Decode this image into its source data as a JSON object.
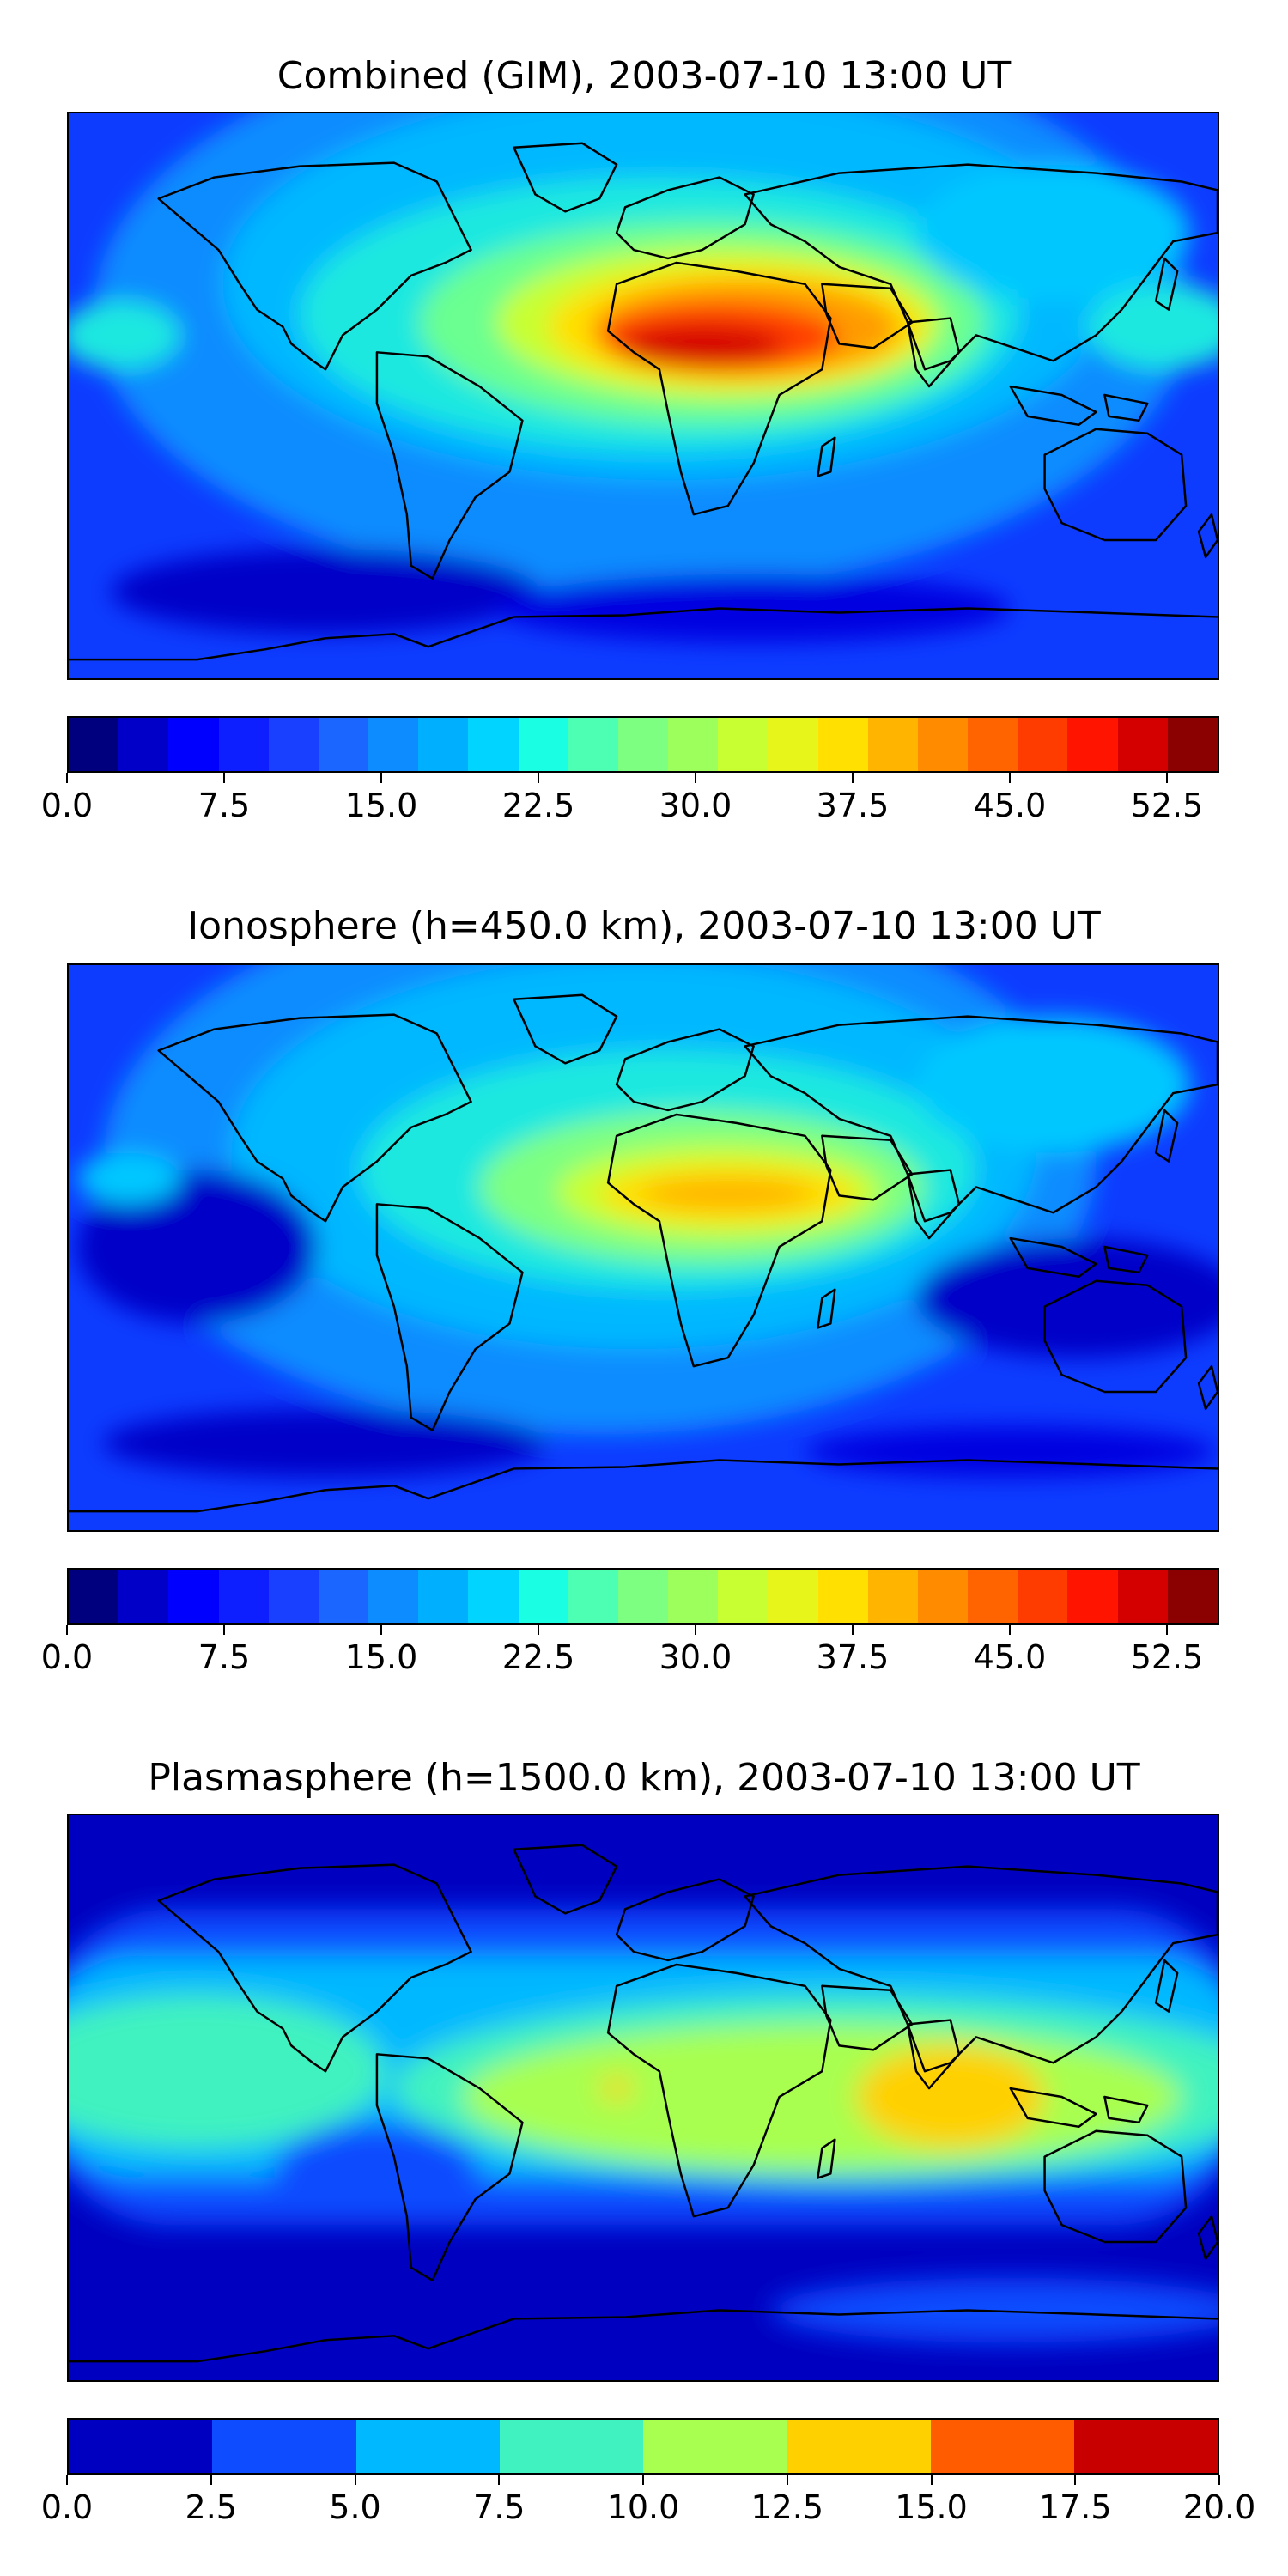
{
  "panels": [
    {
      "title": "Combined (GIM), 2003-07-10 13:00 UT",
      "colorbar": {
        "colors": [
          "#00007f",
          "#0000c8",
          "#0000ff",
          "#0d1fff",
          "#1a40ff",
          "#1a66ff",
          "#0d8cff",
          "#00b0ff",
          "#00d4ff",
          "#1affe4",
          "#4dffb2",
          "#7dff82",
          "#9dff5c",
          "#c8ff33",
          "#e8f51a",
          "#ffe000",
          "#ffb400",
          "#ff8c00",
          "#ff6400",
          "#ff3c00",
          "#ff1400",
          "#d40000",
          "#8b0000"
        ],
        "ticks": [
          "0.0",
          "7.5",
          "15.0",
          "22.5",
          "30.0",
          "37.5",
          "45.0",
          "52.5"
        ],
        "tick_values": [
          0,
          7.5,
          15,
          22.5,
          30,
          37.5,
          45,
          52.5
        ],
        "range": [
          0,
          55
        ]
      }
    },
    {
      "title": "Ionosphere  (h=450.0 km), 2003-07-10 13:00 UT",
      "colorbar": {
        "colors": [
          "#00007f",
          "#0000c8",
          "#0000ff",
          "#0d1fff",
          "#1a40ff",
          "#1a66ff",
          "#0d8cff",
          "#00b0ff",
          "#00d4ff",
          "#1affe4",
          "#4dffb2",
          "#7dff82",
          "#9dff5c",
          "#c8ff33",
          "#e8f51a",
          "#ffe000",
          "#ffb400",
          "#ff8c00",
          "#ff6400",
          "#ff3c00",
          "#ff1400",
          "#d40000",
          "#8b0000"
        ],
        "ticks": [
          "0.0",
          "7.5",
          "15.0",
          "22.5",
          "30.0",
          "37.5",
          "45.0",
          "52.5"
        ],
        "tick_values": [
          0,
          7.5,
          15,
          22.5,
          30,
          37.5,
          45,
          52.5
        ],
        "range": [
          0,
          55
        ]
      }
    },
    {
      "title": "Plasmasphere (h=1500.0 km), 2003-07-10 13:00 UT",
      "colorbar": {
        "colors": [
          "#0000c0",
          "#0d4cff",
          "#00b8ff",
          "#40f2c0",
          "#a8ff50",
          "#ffd000",
          "#ff5c00",
          "#c80000"
        ],
        "ticks": [
          "0.0",
          "2.5",
          "5.0",
          "7.5",
          "10.0",
          "12.5",
          "15.0",
          "17.5",
          "20.0"
        ],
        "tick_values": [
          0,
          2.5,
          5,
          7.5,
          10,
          12.5,
          15,
          17.5,
          20
        ],
        "range": [
          0,
          20
        ]
      }
    }
  ]
}
